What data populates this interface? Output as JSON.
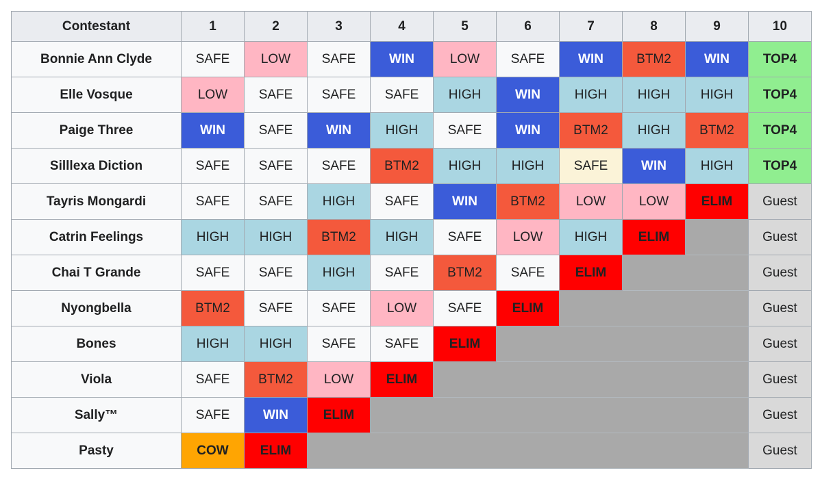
{
  "table": {
    "columns": [
      "Contestant",
      "1",
      "2",
      "3",
      "4",
      "5",
      "6",
      "7",
      "8",
      "9",
      "10"
    ],
    "colors": {
      "header_bg": "#eaecf0",
      "label_bg": "#f8f9fa",
      "border": "#a2a9b1",
      "text": "#202122",
      "win_text": "#ffffff",
      "safe": "#f8f9fa",
      "safe_special": "#fbf3d8",
      "low": "#ffb6c3",
      "high": "#aad6e2",
      "win": "#3b5cd9",
      "btm2": "#f4593c",
      "elim": "#ff0000",
      "top4": "#90ee90",
      "cow": "#ffa502",
      "guest": "#d9d9d9",
      "empty": "#a9a9a9",
      "empty_divider": "#b3bac0"
    },
    "rows": [
      {
        "name": "Bonnie Ann Clyde",
        "cells": [
          {
            "label": "SAFE",
            "type": "safe"
          },
          {
            "label": "LOW",
            "type": "low"
          },
          {
            "label": "SAFE",
            "type": "safe"
          },
          {
            "label": "WIN",
            "type": "win"
          },
          {
            "label": "LOW",
            "type": "low"
          },
          {
            "label": "SAFE",
            "type": "safe"
          },
          {
            "label": "WIN",
            "type": "win"
          },
          {
            "label": "BTM2",
            "type": "btm2"
          },
          {
            "label": "WIN",
            "type": "win"
          },
          {
            "label": "TOP4",
            "type": "top4"
          }
        ]
      },
      {
        "name": "Elle Vosque",
        "cells": [
          {
            "label": "LOW",
            "type": "low"
          },
          {
            "label": "SAFE",
            "type": "safe"
          },
          {
            "label": "SAFE",
            "type": "safe"
          },
          {
            "label": "SAFE",
            "type": "safe"
          },
          {
            "label": "HIGH",
            "type": "high"
          },
          {
            "label": "WIN",
            "type": "win"
          },
          {
            "label": "HIGH",
            "type": "high"
          },
          {
            "label": "HIGH",
            "type": "high"
          },
          {
            "label": "HIGH",
            "type": "high"
          },
          {
            "label": "TOP4",
            "type": "top4"
          }
        ]
      },
      {
        "name": "Paige Three",
        "cells": [
          {
            "label": "WIN",
            "type": "win"
          },
          {
            "label": "SAFE",
            "type": "safe"
          },
          {
            "label": "WIN",
            "type": "win"
          },
          {
            "label": "HIGH",
            "type": "high"
          },
          {
            "label": "SAFE",
            "type": "safe"
          },
          {
            "label": "WIN",
            "type": "win"
          },
          {
            "label": "BTM2",
            "type": "btm2"
          },
          {
            "label": "HIGH",
            "type": "high"
          },
          {
            "label": "BTM2",
            "type": "btm2"
          },
          {
            "label": "TOP4",
            "type": "top4"
          }
        ]
      },
      {
        "name": "Silllexa Diction",
        "cells": [
          {
            "label": "SAFE",
            "type": "safe"
          },
          {
            "label": "SAFE",
            "type": "safe"
          },
          {
            "label": "SAFE",
            "type": "safe"
          },
          {
            "label": "BTM2",
            "type": "btm2"
          },
          {
            "label": "HIGH",
            "type": "high"
          },
          {
            "label": "HIGH",
            "type": "high"
          },
          {
            "label": "SAFE",
            "type": "safe_special"
          },
          {
            "label": "WIN",
            "type": "win"
          },
          {
            "label": "HIGH",
            "type": "high"
          },
          {
            "label": "TOP4",
            "type": "top4"
          }
        ]
      },
      {
        "name": "Tayris Mongardi",
        "cells": [
          {
            "label": "SAFE",
            "type": "safe"
          },
          {
            "label": "SAFE",
            "type": "safe"
          },
          {
            "label": "HIGH",
            "type": "high"
          },
          {
            "label": "SAFE",
            "type": "safe"
          },
          {
            "label": "WIN",
            "type": "win"
          },
          {
            "label": "BTM2",
            "type": "btm2"
          },
          {
            "label": "LOW",
            "type": "low"
          },
          {
            "label": "LOW",
            "type": "low"
          },
          {
            "label": "ELIM",
            "type": "elim"
          },
          {
            "label": "Guest",
            "type": "guest"
          }
        ]
      },
      {
        "name": "Catrin Feelings",
        "cells": [
          {
            "label": "HIGH",
            "type": "high"
          },
          {
            "label": "HIGH",
            "type": "high"
          },
          {
            "label": "BTM2",
            "type": "btm2"
          },
          {
            "label": "HIGH",
            "type": "high"
          },
          {
            "label": "SAFE",
            "type": "safe"
          },
          {
            "label": "LOW",
            "type": "low"
          },
          {
            "label": "HIGH",
            "type": "high"
          },
          {
            "label": "ELIM",
            "type": "elim"
          },
          {
            "label": "",
            "type": "empty",
            "span": 1
          },
          {
            "label": "Guest",
            "type": "guest"
          }
        ]
      },
      {
        "name": "Chai T Grande",
        "cells": [
          {
            "label": "SAFE",
            "type": "safe"
          },
          {
            "label": "SAFE",
            "type": "safe"
          },
          {
            "label": "HIGH",
            "type": "high"
          },
          {
            "label": "SAFE",
            "type": "safe"
          },
          {
            "label": "BTM2",
            "type": "btm2"
          },
          {
            "label": "SAFE",
            "type": "safe"
          },
          {
            "label": "ELIM",
            "type": "elim"
          },
          {
            "label": "",
            "type": "empty",
            "span": 2
          },
          {
            "label": "Guest",
            "type": "guest"
          }
        ]
      },
      {
        "name": "Nyongbella",
        "cells": [
          {
            "label": "BTM2",
            "type": "btm2"
          },
          {
            "label": "SAFE",
            "type": "safe"
          },
          {
            "label": "SAFE",
            "type": "safe"
          },
          {
            "label": "LOW",
            "type": "low"
          },
          {
            "label": "SAFE",
            "type": "safe"
          },
          {
            "label": "ELIM",
            "type": "elim"
          },
          {
            "label": "",
            "type": "empty",
            "span": 3
          },
          {
            "label": "Guest",
            "type": "guest"
          }
        ]
      },
      {
        "name": "Bones",
        "cells": [
          {
            "label": "HIGH",
            "type": "high"
          },
          {
            "label": "HIGH",
            "type": "high"
          },
          {
            "label": "SAFE",
            "type": "safe"
          },
          {
            "label": "SAFE",
            "type": "safe"
          },
          {
            "label": "ELIM",
            "type": "elim"
          },
          {
            "label": "",
            "type": "empty",
            "span": 4
          },
          {
            "label": "Guest",
            "type": "guest"
          }
        ]
      },
      {
        "name": "Viola",
        "cells": [
          {
            "label": "SAFE",
            "type": "safe"
          },
          {
            "label": "BTM2",
            "type": "btm2"
          },
          {
            "label": "LOW",
            "type": "low"
          },
          {
            "label": "ELIM",
            "type": "elim"
          },
          {
            "label": "",
            "type": "empty",
            "span": 5
          },
          {
            "label": "Guest",
            "type": "guest"
          }
        ]
      },
      {
        "name": "Sally™",
        "cells": [
          {
            "label": "SAFE",
            "type": "safe"
          },
          {
            "label": "WIN",
            "type": "win"
          },
          {
            "label": "ELIM",
            "type": "elim"
          },
          {
            "label": "",
            "type": "empty",
            "span": 6
          },
          {
            "label": "Guest",
            "type": "guest"
          }
        ]
      },
      {
        "name": "Pasty",
        "cells": [
          {
            "label": "COW",
            "type": "cow"
          },
          {
            "label": "ELIM",
            "type": "elim"
          },
          {
            "label": "",
            "type": "empty",
            "span": 7
          },
          {
            "label": "Guest",
            "type": "guest"
          }
        ]
      }
    ]
  },
  "chart_data": {
    "type": "table",
    "title": "",
    "columns": [
      "Contestant",
      "1",
      "2",
      "3",
      "4",
      "5",
      "6",
      "7",
      "8",
      "9",
      "10"
    ],
    "rows": [
      [
        "Bonnie Ann Clyde",
        "SAFE",
        "LOW",
        "SAFE",
        "WIN",
        "LOW",
        "SAFE",
        "WIN",
        "BTM2",
        "WIN",
        "TOP4"
      ],
      [
        "Elle Vosque",
        "LOW",
        "SAFE",
        "SAFE",
        "SAFE",
        "HIGH",
        "WIN",
        "HIGH",
        "HIGH",
        "HIGH",
        "TOP4"
      ],
      [
        "Paige Three",
        "WIN",
        "SAFE",
        "WIN",
        "HIGH",
        "SAFE",
        "WIN",
        "BTM2",
        "HIGH",
        "BTM2",
        "TOP4"
      ],
      [
        "Silllexa Diction",
        "SAFE",
        "SAFE",
        "SAFE",
        "BTM2",
        "HIGH",
        "HIGH",
        "SAFE",
        "WIN",
        "HIGH",
        "TOP4"
      ],
      [
        "Tayris Mongardi",
        "SAFE",
        "SAFE",
        "HIGH",
        "SAFE",
        "WIN",
        "BTM2",
        "LOW",
        "LOW",
        "ELIM",
        "Guest"
      ],
      [
        "Catrin Feelings",
        "HIGH",
        "HIGH",
        "BTM2",
        "HIGH",
        "SAFE",
        "LOW",
        "HIGH",
        "ELIM",
        "",
        "Guest"
      ],
      [
        "Chai T Grande",
        "SAFE",
        "SAFE",
        "HIGH",
        "SAFE",
        "BTM2",
        "SAFE",
        "ELIM",
        "",
        "",
        "Guest"
      ],
      [
        "Nyongbella",
        "BTM2",
        "SAFE",
        "SAFE",
        "LOW",
        "SAFE",
        "ELIM",
        "",
        "",
        "",
        "Guest"
      ],
      [
        "Bones",
        "HIGH",
        "HIGH",
        "SAFE",
        "SAFE",
        "ELIM",
        "",
        "",
        "",
        "",
        "Guest"
      ],
      [
        "Viola",
        "SAFE",
        "BTM2",
        "LOW",
        "ELIM",
        "",
        "",
        "",
        "",
        "",
        "Guest"
      ],
      [
        "Sally™",
        "SAFE",
        "WIN",
        "ELIM",
        "",
        "",
        "",
        "",
        "",
        "",
        "Guest"
      ],
      [
        "Pasty",
        "COW",
        "ELIM",
        "",
        "",
        "",
        "",
        "",
        "",
        "",
        "Guest"
      ]
    ]
  }
}
